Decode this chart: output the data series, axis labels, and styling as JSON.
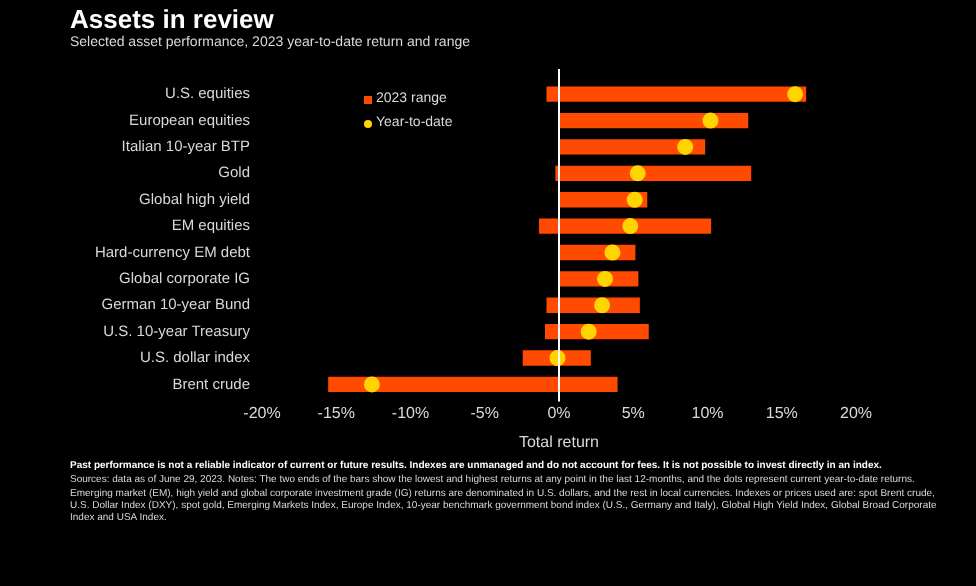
{
  "chart_data": {
    "type": "bar",
    "orientation": "horizontal",
    "title": "Assets in review",
    "subtitle": "Selected asset performance, 2023 year-to-date return and range",
    "xlabel": "Total return",
    "categories": [
      "U.S. equities",
      "European equities",
      "Italian 10-year BTP",
      "Gold",
      "Global high yield",
      "EM equities",
      "Hard-currency EM debt",
      "Global corporate IG",
      "German 10-year Bund",
      "U.S. 10-year Treasury",
      "U.S. dollar index",
      "Brent crude"
    ],
    "series": [
      {
        "name": "2023 range",
        "color": "#ff4a00",
        "base": [
          -0.8,
          0.1,
          0.1,
          -0.2,
          0.1,
          -1.3,
          0.1,
          0.1,
          -0.8,
          -0.9,
          -2.4,
          -15.5
        ],
        "values": [
          17.4,
          12.6,
          9.7,
          13.1,
          5.8,
          11.5,
          5.0,
          5.2,
          6.2,
          6.9,
          4.5,
          19.4
        ]
      },
      {
        "name": "Year-to-date",
        "type": "scatter",
        "color": "#ffd400",
        "values": [
          15.9,
          10.2,
          8.5,
          5.3,
          5.1,
          4.8,
          3.6,
          3.1,
          2.9,
          2.0,
          -0.1,
          -12.6
        ]
      }
    ],
    "xlim": [
      -20,
      20
    ],
    "xticks": [
      {
        "value": -20,
        "label": "-20%"
      },
      {
        "value": -15,
        "label": "-15%"
      },
      {
        "value": -10,
        "label": "-10%"
      },
      {
        "value": -5,
        "label": "-5%"
      },
      {
        "value": 0,
        "label": "0%"
      },
      {
        "value": 5,
        "label": "5%"
      },
      {
        "value": 10,
        "label": "10%"
      },
      {
        "value": 15,
        "label": "15%"
      },
      {
        "value": 20,
        "label": "20%"
      }
    ],
    "ref_lines": [
      {
        "axis": "x",
        "value": 0,
        "color": "#ffffff"
      }
    ],
    "grid": false,
    "legend": "top left",
    "marker": "circle",
    "annotations": [
      "Past performance is not a reliable indicator of current or future results. Indexes are unmanaged and do not account for fees. It is not possible to invest directly in an index.",
      "Sources: data as of June 29, 2023. Notes: The two ends of the bars show the lowest and highest returns at any point in the last 12-months, and the dots represent current year-to-date returns. Emerging market (EM), high yield and global corporate investment grade (IG) returns are denominated in U.S. dollars, and the rest in local currencies. Indexes or prices used are: spot Brent crude, U.S. Dollar Index (DXY), spot gold, Emerging Markets Index, Europe Index, 10-year benchmark government bond index (U.S., Germany and Italy), Global High Yield Index, Global Broad Corporate Index and USA Index."
    ]
  }
}
